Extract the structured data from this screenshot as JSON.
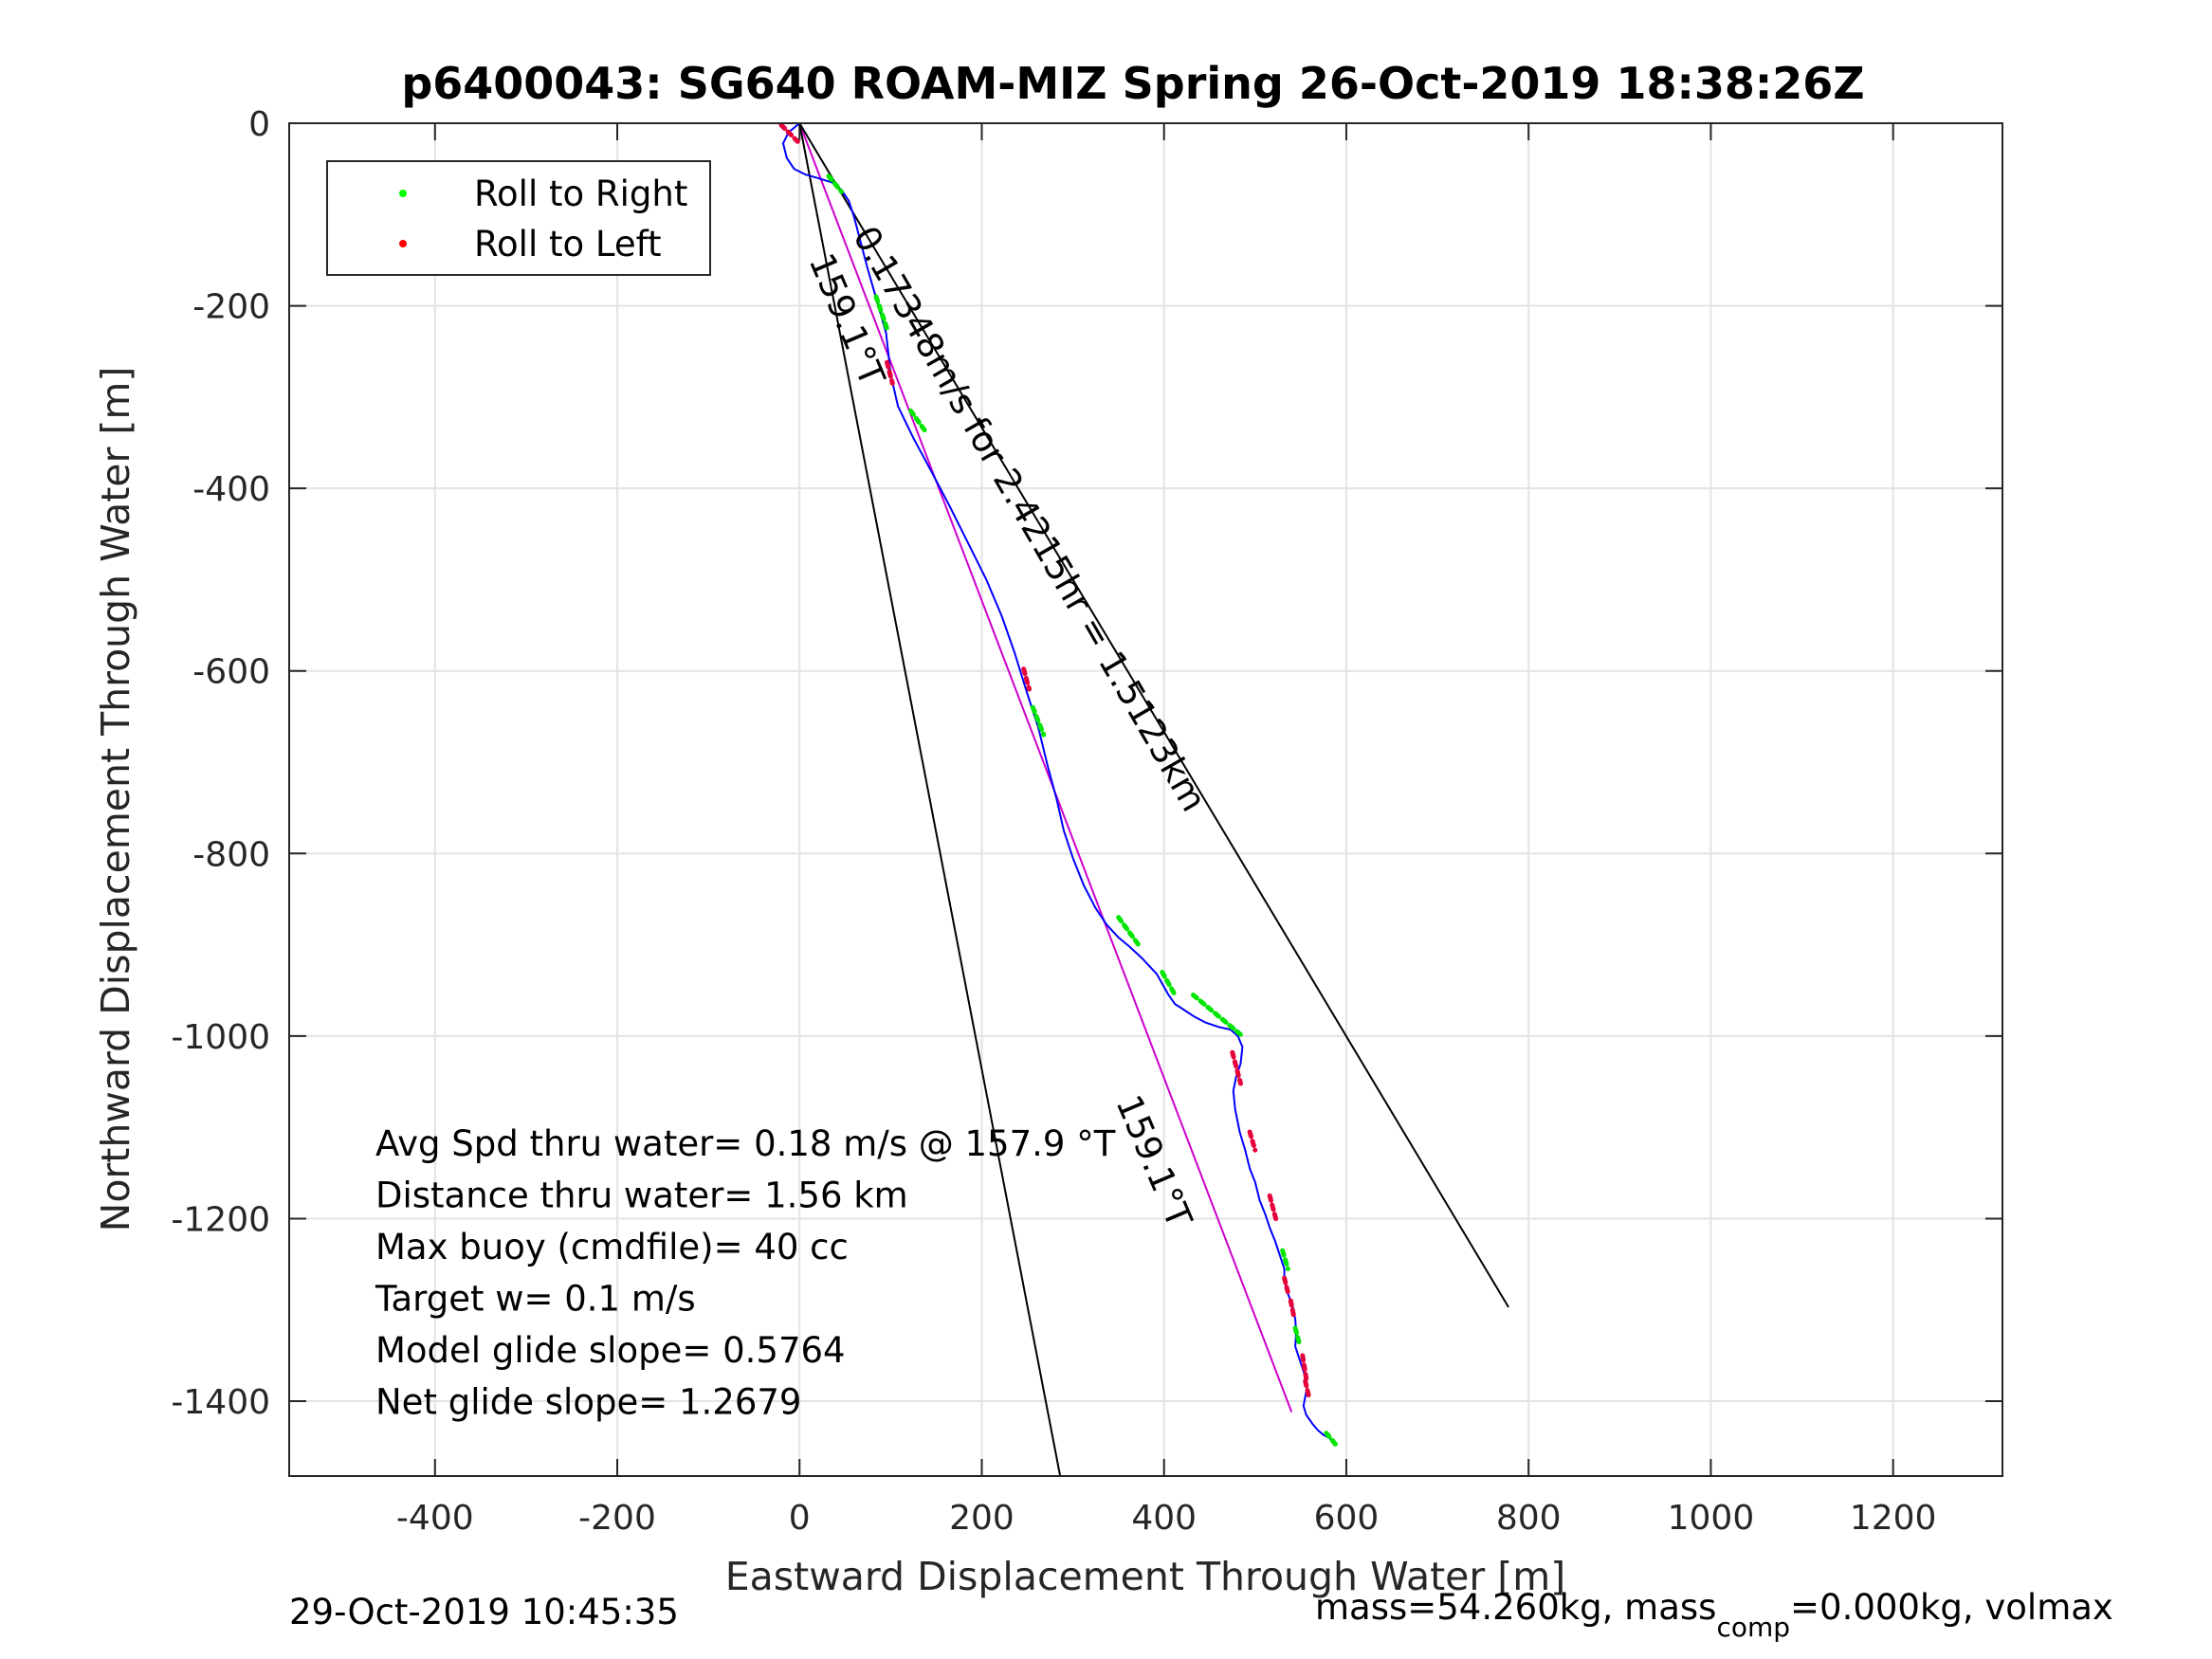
{
  "chart_data": {
    "type": "line",
    "title": "p6400043: SG640 ROAM-MIZ Spring 26-Oct-2019 18:38:26Z",
    "xlabel": "Eastward Displacement Through Water [m]",
    "ylabel": "Northward Displacement Through Water [m]",
    "xlim": [
      -560,
      1320
    ],
    "ylim": [
      -1482,
      0
    ],
    "xticks": [
      -400,
      -200,
      0,
      200,
      400,
      600,
      800,
      1000,
      1200
    ],
    "yticks": [
      0,
      -200,
      -400,
      -600,
      -800,
      -1000,
      -1200,
      -1400
    ],
    "grid": true,
    "legend": {
      "placement": "top-left",
      "entries": [
        {
          "label": "Roll to Right",
          "color": "#00ff00"
        },
        {
          "label": "Roll to Left",
          "color": "#ff0000"
        }
      ]
    },
    "series": [
      {
        "color": "#0000ff",
        "x": [
          0,
          -12,
          -18,
          -14,
          -6,
          6,
          20,
          36,
          46,
          54,
          60,
          67,
          75,
          85,
          95,
          100,
          108,
          125,
          145,
          165,
          185,
          205,
          222,
          236,
          250,
          262,
          272,
          282,
          290,
          300,
          312,
          325,
          337,
          350,
          362,
          376,
          392,
          405,
          412,
          420,
          432,
          445,
          460,
          473,
          481,
          486,
          484,
          479,
          476,
          478,
          483,
          489,
          494,
          500,
          505,
          511,
          516,
          522,
          527,
          532,
          532,
          535,
          541,
          544,
          545,
          544,
          549,
          554,
          557,
          555,
          553,
          556,
          563,
          569,
          575,
          581,
          586
        ],
        "y": [
          0,
          -10,
          -22,
          -38,
          -50,
          -56,
          -60,
          -65,
          -73,
          -85,
          -103,
          -130,
          -160,
          -195,
          -230,
          -275,
          -310,
          -345,
          -382,
          -420,
          -460,
          -500,
          -540,
          -580,
          -625,
          -662,
          -703,
          -740,
          -775,
          -805,
          -835,
          -860,
          -878,
          -892,
          -902,
          -915,
          -932,
          -955,
          -965,
          -970,
          -978,
          -985,
          -990,
          -993,
          -1000,
          -1012,
          -1030,
          -1045,
          -1060,
          -1080,
          -1105,
          -1125,
          -1145,
          -1160,
          -1180,
          -1195,
          -1210,
          -1225,
          -1240,
          -1255,
          -1268,
          -1280,
          -1295,
          -1310,
          -1325,
          -1340,
          -1355,
          -1370,
          -1385,
          -1395,
          -1405,
          -1415,
          -1425,
          -1432,
          -1437,
          -1440,
          -1445
        ]
      }
    ],
    "roll_right_segments": [
      {
        "x": [
          32,
          46
        ],
        "y": [
          -58,
          -75
        ]
      },
      {
        "x": [
          84,
          96
        ],
        "y": [
          -190,
          -225
        ]
      },
      {
        "x": [
          122,
          140
        ],
        "y": [
          -315,
          -340
        ]
      },
      {
        "x": [
          256,
          268
        ],
        "y": [
          -640,
          -670
        ]
      },
      {
        "x": [
          350,
          372
        ],
        "y": [
          -870,
          -900
        ]
      },
      {
        "x": [
          398,
          412
        ],
        "y": [
          -930,
          -955
        ]
      },
      {
        "x": [
          432,
          486
        ],
        "y": [
          -955,
          -1000
        ]
      },
      {
        "x": [
          530,
          536
        ],
        "y": [
          -1235,
          -1255
        ]
      },
      {
        "x": [
          544,
          548
        ],
        "y": [
          -1320,
          -1335
        ]
      },
      {
        "x": [
          578,
          588
        ],
        "y": [
          -1435,
          -1447
        ]
      }
    ],
    "roll_left_segments": [
      {
        "x": [
          -20,
          -2
        ],
        "y": [
          -2,
          -20
        ]
      },
      {
        "x": [
          96,
          102
        ],
        "y": [
          -262,
          -285
        ]
      },
      {
        "x": [
          246,
          252
        ],
        "y": [
          -598,
          -620
        ]
      },
      {
        "x": [
          475,
          484
        ],
        "y": [
          -1018,
          -1052
        ]
      },
      {
        "x": [
          494,
          500
        ],
        "y": [
          -1105,
          -1125
        ]
      },
      {
        "x": [
          516,
          524
        ],
        "y": [
          -1175,
          -1205
        ]
      },
      {
        "x": [
          532,
          537
        ],
        "y": [
          -1265,
          -1285
        ]
      },
      {
        "x": [
          539,
          543
        ],
        "y": [
          -1290,
          -1310
        ]
      },
      {
        "x": [
          552,
          556
        ],
        "y": [
          -1350,
          -1375
        ]
      },
      {
        "x": [
          555,
          559
        ],
        "y": [
          -1378,
          -1395
        ]
      }
    ],
    "reference_lines": [
      {
        "color": "#cc00cc",
        "x": [
          0,
          540
        ],
        "y": [
          0,
          -1412
        ]
      },
      {
        "color": "#000000",
        "x": [
          0,
          286
        ],
        "y": [
          0,
          -1482
        ]
      },
      {
        "color": "#000000",
        "x": [
          0,
          778
        ],
        "y": [
          0,
          -1297
        ]
      }
    ],
    "annotations": [
      {
        "text": "0.17348m/s for 2.4215hr = 1.5123km",
        "x": 58,
        "y": -123,
        "rotate": 60
      },
      {
        "text": "159.1°T",
        "x": 10,
        "y": -150,
        "rotate": 67
      },
      {
        "text": "159.1°T",
        "x": 347,
        "y": -1072,
        "rotate": 67
      }
    ],
    "stats_lines": [
      "Avg Spd thru water=  0.18 m/s @ 157.9 °T",
      "Distance thru water=  1.56 km",
      "Max buoy (cmdfile)= 40 cc",
      "Target w= 0.1 m/s",
      "Model glide slope= 0.5764",
      "Net glide slope= 1.2679"
    ]
  },
  "footer": {
    "timestamp": "29-Oct-2019 10:45:35",
    "mass_prefix": "mass=54.260kg, mass",
    "mass_sub": "comp",
    "mass_suffix": "=0.000kg, volmax"
  }
}
